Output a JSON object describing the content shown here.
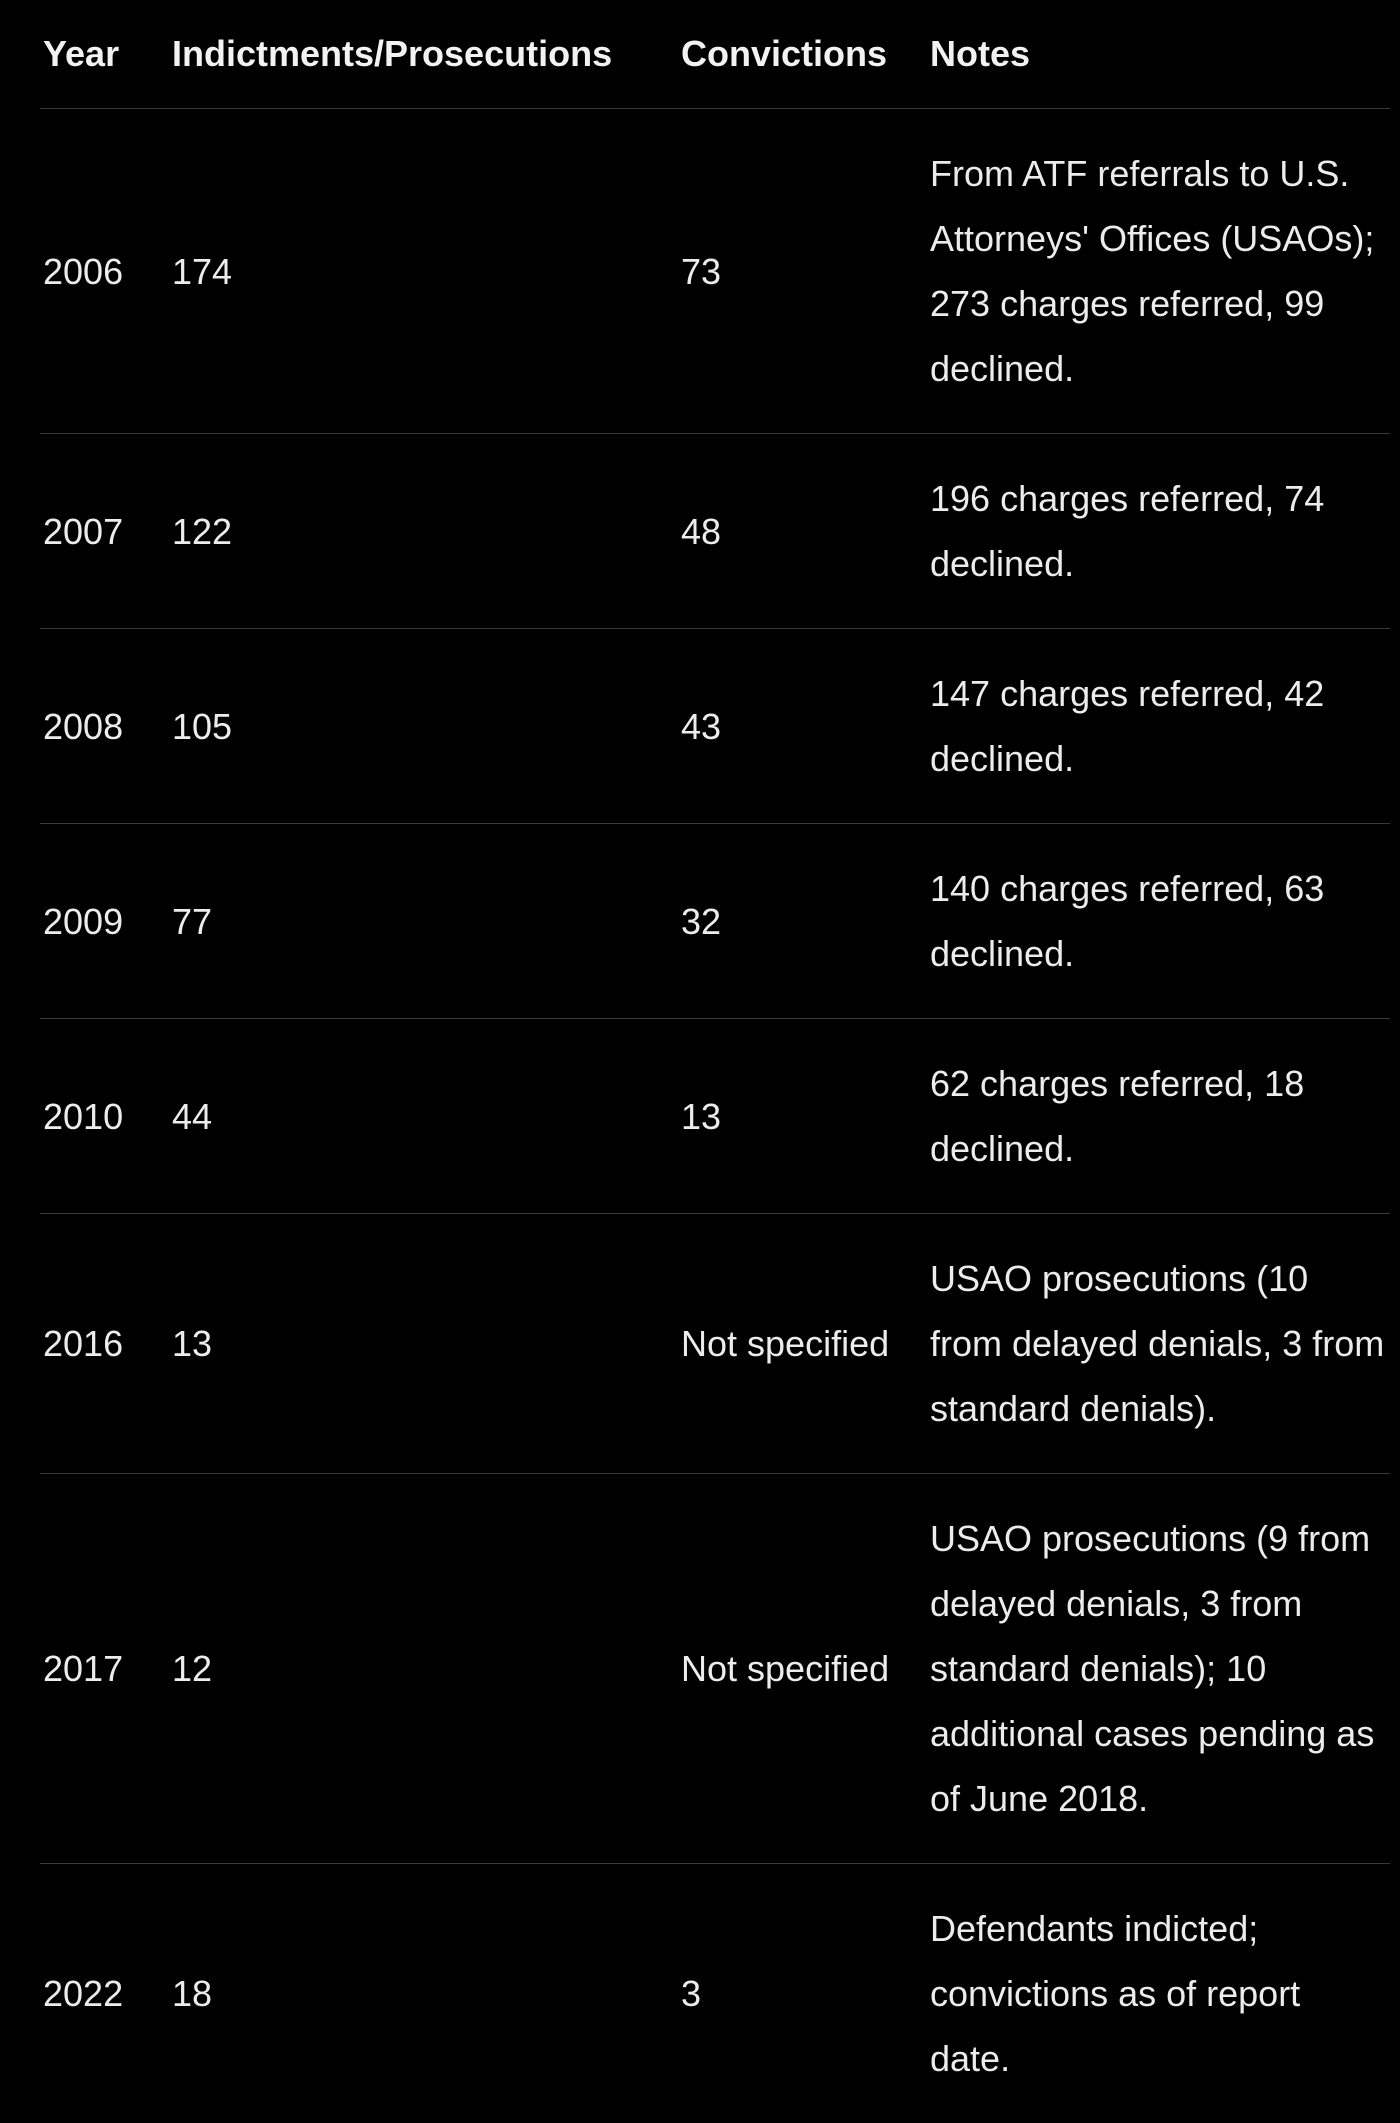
{
  "table": {
    "headers": [
      "Year",
      "Indictments/Prosecutions",
      "Convictions",
      "Notes"
    ],
    "rows": [
      {
        "year": "2006",
        "indictments": "174",
        "convictions": "73",
        "notes": "From ATF referrals to U.S. Attorneys' Offices (USAOs); 273 charges referred, 99 declined."
      },
      {
        "year": "2007",
        "indictments": "122",
        "convictions": "48",
        "notes": "196 charges referred, 74 declined."
      },
      {
        "year": "2008",
        "indictments": "105",
        "convictions": "43",
        "notes": "147 charges referred, 42 declined."
      },
      {
        "year": "2009",
        "indictments": "77",
        "convictions": "32",
        "notes": "140 charges referred, 63 declined."
      },
      {
        "year": "2010",
        "indictments": "44",
        "convictions": "13",
        "notes": "62 charges referred, 18 declined."
      },
      {
        "year": "2016",
        "indictments": "13",
        "convictions": "Not specified",
        "notes": "USAO prosecutions (10 from delayed denials, 3 from standard denials)."
      },
      {
        "year": "2017",
        "indictments": "12",
        "convictions": "Not specified",
        "notes": "USAO prosecutions (9 from delayed denials, 3 from standard denials); 10 additional cases pending as of June 2018."
      },
      {
        "year": "2022",
        "indictments": "18",
        "convictions": "3",
        "notes": "Defendants indicted; convictions as of report date."
      }
    ]
  }
}
